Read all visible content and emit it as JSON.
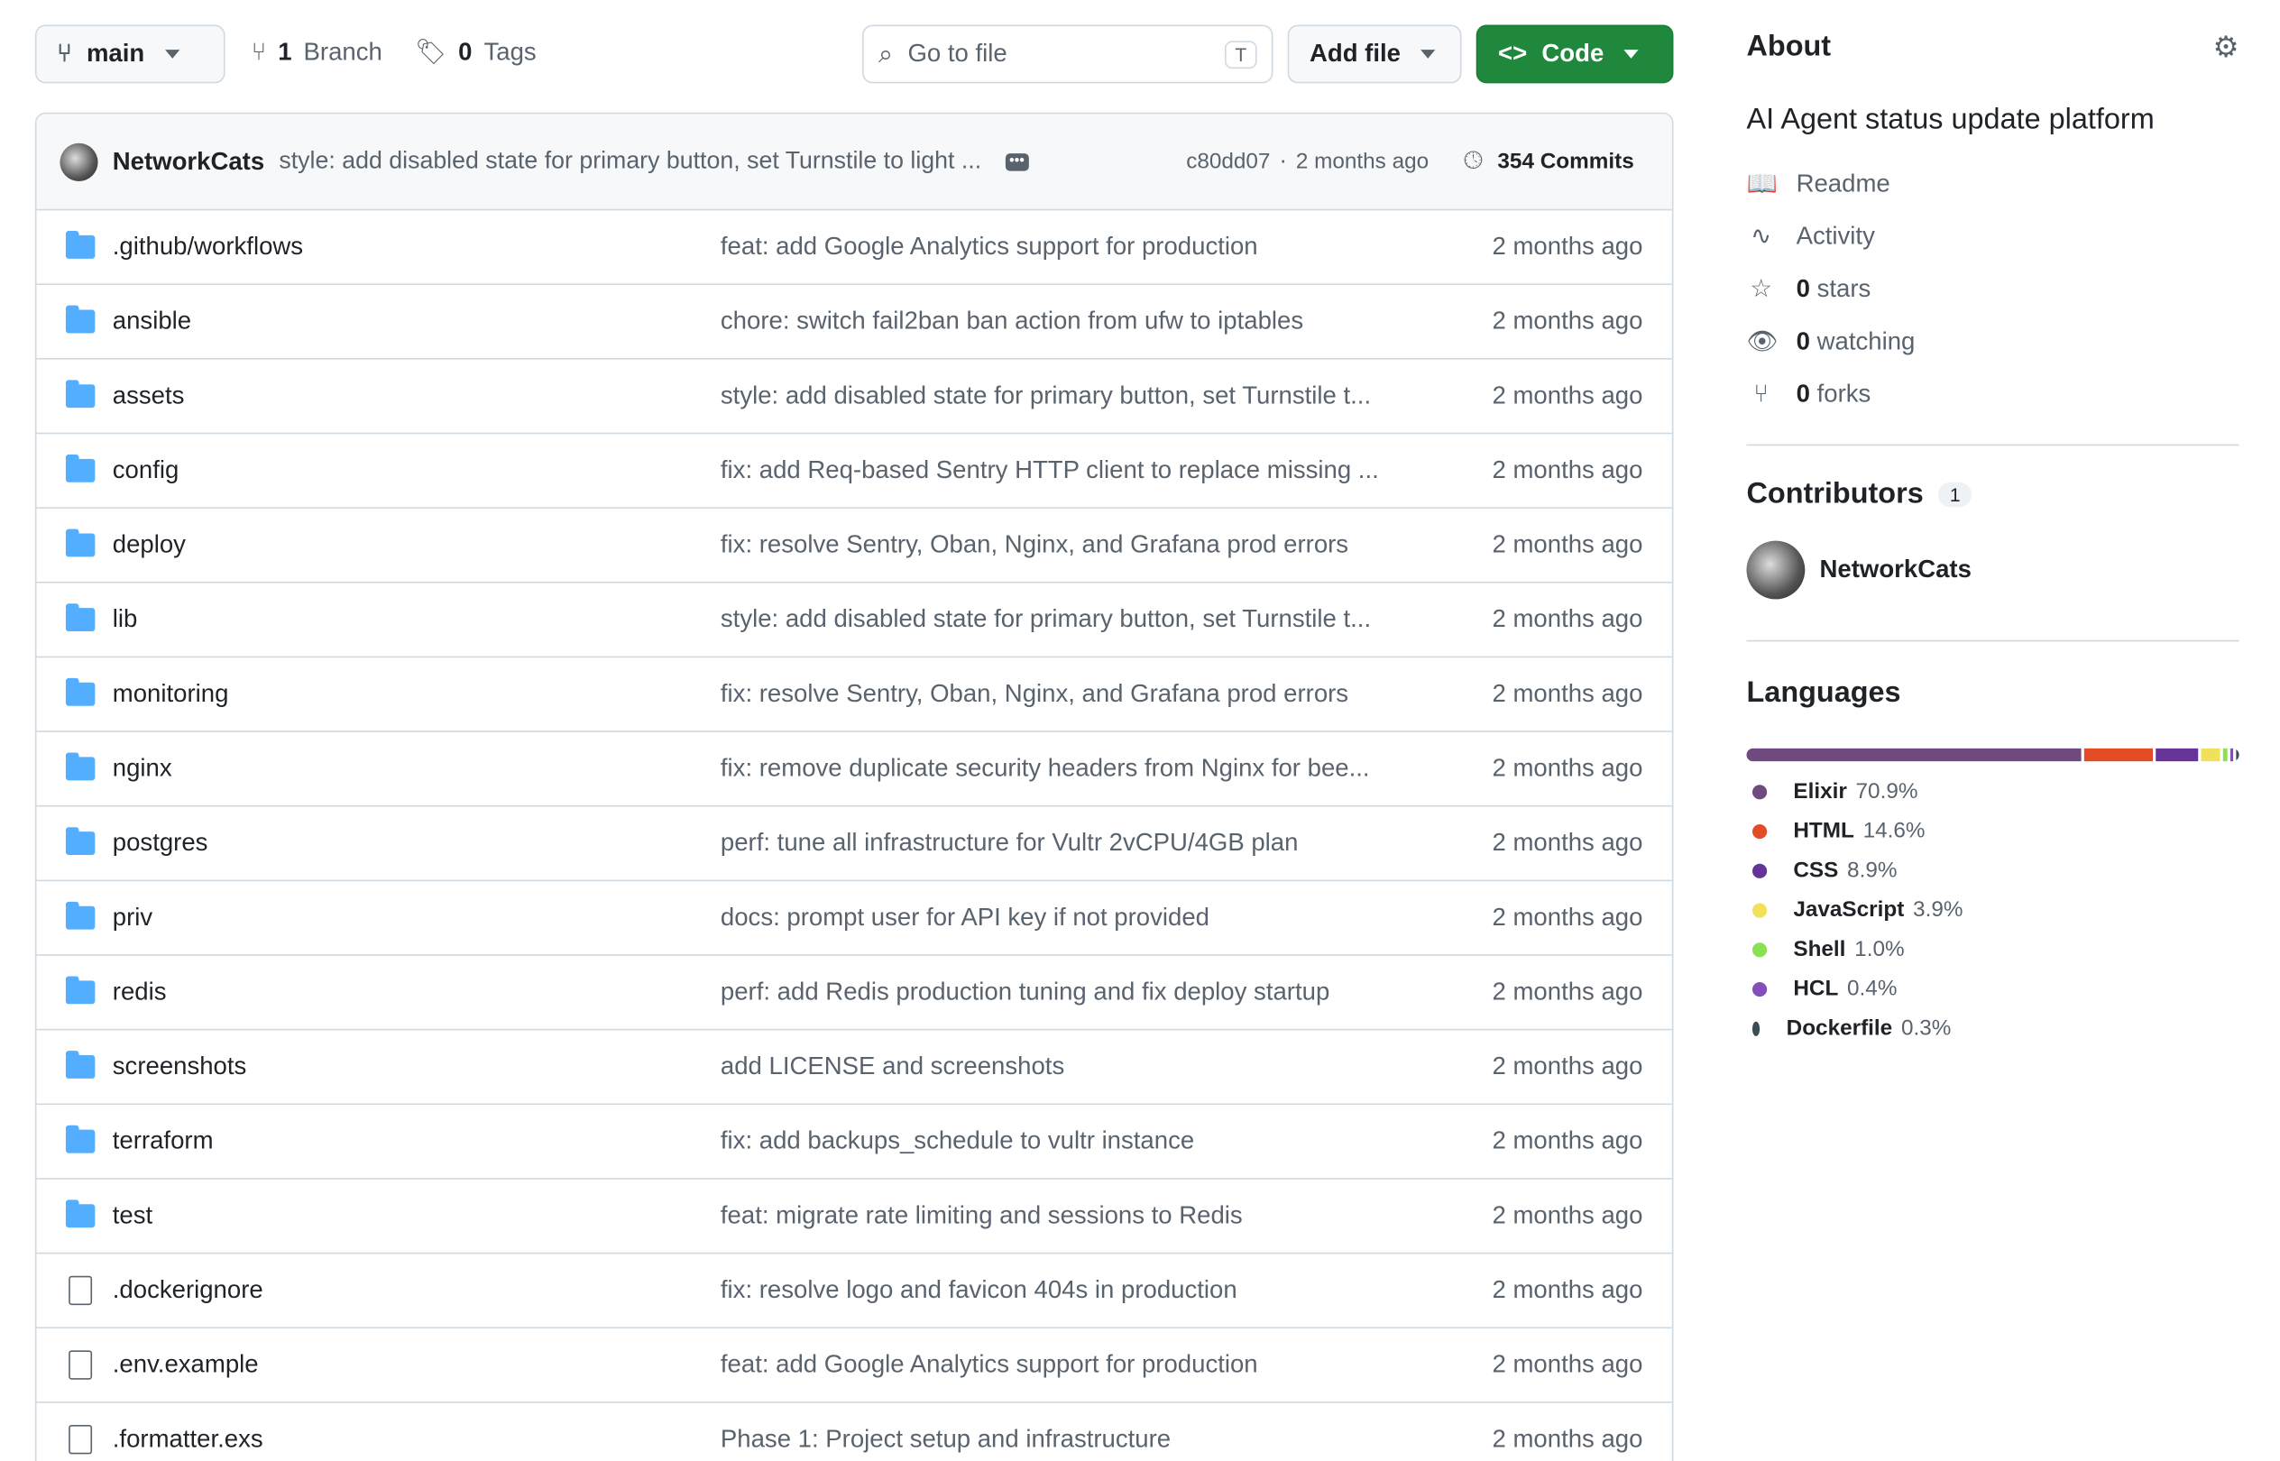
{
  "toolbar": {
    "branch": "main",
    "branches": "1",
    "branches_label": "Branch",
    "tags": "0",
    "tags_label": "Tags",
    "search_placeholder": "Go to file",
    "search_shortcut": "T",
    "add_file": "Add file",
    "code": "Code",
    "code_color": "#1f883d"
  },
  "commit": {
    "author": "NetworkCats",
    "message": "style: add disabled state for primary button, set Turnstile to light ...",
    "hash": "c80dd07",
    "sep": "·",
    "time": "2 months ago",
    "count": "354 Commits"
  },
  "files": [
    {
      "name": ".github/workflows",
      "type": "folder",
      "msg": "feat: add Google Analytics support for production",
      "date": "2 months ago"
    },
    {
      "name": "ansible",
      "type": "folder",
      "msg": "chore: switch fail2ban ban action from ufw to iptables",
      "date": "2 months ago"
    },
    {
      "name": "assets",
      "type": "folder",
      "msg": "style: add disabled state for primary button, set Turnstile t...",
      "date": "2 months ago"
    },
    {
      "name": "config",
      "type": "folder",
      "msg": "fix: add Req-based Sentry HTTP client to replace missing ...",
      "date": "2 months ago"
    },
    {
      "name": "deploy",
      "type": "folder",
      "msg": "fix: resolve Sentry, Oban, Nginx, and Grafana prod errors",
      "date": "2 months ago"
    },
    {
      "name": "lib",
      "type": "folder",
      "msg": "style: add disabled state for primary button, set Turnstile t...",
      "date": "2 months ago"
    },
    {
      "name": "monitoring",
      "type": "folder",
      "msg": "fix: resolve Sentry, Oban, Nginx, and Grafana prod errors",
      "date": "2 months ago"
    },
    {
      "name": "nginx",
      "type": "folder",
      "msg": "fix: remove duplicate security headers from Nginx for bee...",
      "date": "2 months ago"
    },
    {
      "name": "postgres",
      "type": "folder",
      "msg": "perf: tune all infrastructure for Vultr 2vCPU/4GB plan",
      "date": "2 months ago"
    },
    {
      "name": "priv",
      "type": "folder",
      "msg": "docs: prompt user for API key if not provided",
      "date": "2 months ago"
    },
    {
      "name": "redis",
      "type": "folder",
      "msg": "perf: add Redis production tuning and fix deploy startup",
      "date": "2 months ago"
    },
    {
      "name": "screenshots",
      "type": "folder",
      "msg": "add LICENSE and screenshots",
      "date": "2 months ago"
    },
    {
      "name": "terraform",
      "type": "folder",
      "msg": "fix: add backups_schedule to vultr instance",
      "date": "2 months ago"
    },
    {
      "name": "test",
      "type": "folder",
      "msg": "feat: migrate rate limiting and sessions to Redis",
      "date": "2 months ago"
    },
    {
      "name": ".dockerignore",
      "type": "file",
      "msg": "fix: resolve logo and favicon 404s in production",
      "date": "2 months ago"
    },
    {
      "name": ".env.example",
      "type": "file",
      "msg": "feat: add Google Analytics support for production",
      "date": "2 months ago"
    },
    {
      "name": ".formatter.exs",
      "type": "file",
      "msg": "Phase 1: Project setup and infrastructure",
      "date": "2 months ago"
    }
  ],
  "about": {
    "title": "About",
    "description": "AI Agent status update platform",
    "items": [
      {
        "icon": "book-icon",
        "glyph": "📖",
        "bold": "",
        "label": "Readme"
      },
      {
        "icon": "pulse-icon",
        "glyph": "∿",
        "bold": "",
        "label": "Activity"
      },
      {
        "icon": "star-icon",
        "glyph": "☆",
        "bold": "0",
        "label": "stars"
      },
      {
        "icon": "eye-icon",
        "glyph": "👁",
        "bold": "0",
        "label": "watching"
      },
      {
        "icon": "fork-icon",
        "glyph": "⑂",
        "bold": "0",
        "label": "forks"
      }
    ]
  },
  "contributors": {
    "title": "Contributors",
    "count": "1",
    "name": "NetworkCats"
  },
  "languages": {
    "title": "Languages",
    "items": [
      {
        "name": "Elixir",
        "pct": "70.9%",
        "value": 70.9,
        "color": "#6e4a7e"
      },
      {
        "name": "HTML",
        "pct": "14.6%",
        "value": 14.6,
        "color": "#e34c26"
      },
      {
        "name": "CSS",
        "pct": "8.9%",
        "value": 8.9,
        "color": "#663399"
      },
      {
        "name": "JavaScript",
        "pct": "3.9%",
        "value": 3.9,
        "color": "#f1e05a"
      },
      {
        "name": "Shell",
        "pct": "1.0%",
        "value": 1.0,
        "color": "#89e051"
      },
      {
        "name": "HCL",
        "pct": "0.4%",
        "value": 0.4,
        "color": "#844fba"
      },
      {
        "name": "Dockerfile",
        "pct": "0.3%",
        "value": 0.3,
        "color": "#384d54"
      }
    ]
  }
}
